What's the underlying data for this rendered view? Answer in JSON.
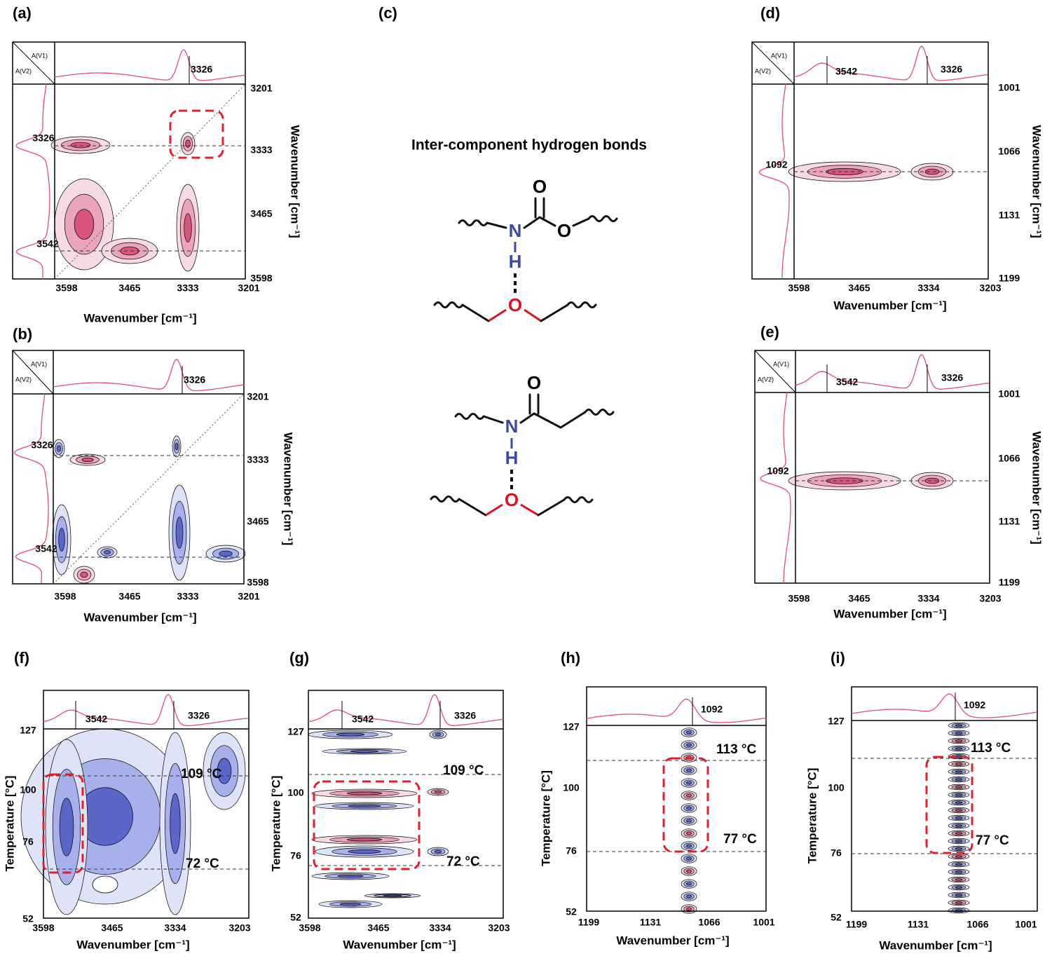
{
  "panels": [
    {
      "label": "(a)",
      "corner": [
        "A(V1)",
        "A(V2)"
      ],
      "peaks_top": [
        "3326"
      ],
      "peaks_left": [
        "3326",
        "3542"
      ],
      "xticks": [
        3598,
        3465,
        3333,
        3201
      ],
      "yticks": [
        3201,
        3333,
        3465,
        3598
      ],
      "xlabel": "Wavenumber [cm⁻¹]",
      "ylabel": "Wavenumber [cm⁻¹]",
      "annotations": []
    },
    {
      "label": "(b)",
      "corner": [
        "A(V1)",
        "A(V2)"
      ],
      "peaks_top": [
        "3326"
      ],
      "peaks_left": [
        "3326",
        "3542"
      ],
      "xticks": [
        3598,
        3465,
        3333,
        3201
      ],
      "yticks": [
        3201,
        3333,
        3465,
        3598
      ],
      "xlabel": "Wavenumber [cm⁻¹]",
      "ylabel": "Wavenumber [cm⁻¹]",
      "annotations": []
    },
    {
      "label": "(d)",
      "corner": [
        "A(V1)",
        "A(V2)"
      ],
      "peaks_top": [
        "3542",
        "3326"
      ],
      "peaks_left": [
        "1092"
      ],
      "xticks": [
        3598,
        3465,
        3334,
        3203
      ],
      "yticks": [
        1001,
        1066,
        1131,
        1199
      ],
      "xlabel": "Wavenumber [cm⁻¹]",
      "ylabel": "Wavenumber [cm⁻¹]",
      "annotations": []
    },
    {
      "label": "(e)",
      "corner": [
        "A(V1)",
        "A(V2)"
      ],
      "peaks_top": [
        "3542",
        "3326"
      ],
      "peaks_left": [
        "1092"
      ],
      "xticks": [
        3598,
        3465,
        3334,
        3203
      ],
      "yticks": [
        1001,
        1066,
        1131,
        1199
      ],
      "xlabel": "Wavenumber [cm⁻¹]",
      "ylabel": "Wavenumber [cm⁻¹]",
      "annotations": []
    },
    {
      "label": "(f)",
      "peaks_top": [
        "3542",
        "3326"
      ],
      "peaks_left": [],
      "xticks": [
        3598,
        3465,
        3334,
        3203
      ],
      "yticks": [
        127,
        100,
        76,
        52
      ],
      "xlabel": "Wavenumber [cm⁻¹]",
      "ylabel": "Temperature [°C]",
      "annotations": [
        "109 °C",
        "72 °C"
      ]
    },
    {
      "label": "(g)",
      "peaks_top": [
        "3542",
        "3326"
      ],
      "peaks_left": [],
      "xticks": [
        3598,
        3465,
        3334,
        3203
      ],
      "yticks": [
        127,
        100,
        76,
        52
      ],
      "xlabel": "Wavenumber [cm⁻¹]",
      "ylabel": "Temperature [°C]",
      "annotations": [
        "109 °C",
        "72 °C"
      ]
    },
    {
      "label": "(h)",
      "peaks_top": [
        "1092"
      ],
      "peaks_left": [],
      "xticks": [
        1199,
        1131,
        1066,
        1001
      ],
      "yticks": [
        127,
        100,
        76,
        52
      ],
      "xlabel": "Wavenumber [cm⁻¹]",
      "ylabel": "Temperature [°C]",
      "annotations": [
        "113 °C",
        "77 °C"
      ]
    },
    {
      "label": "(i)",
      "peaks_top": [
        "1092"
      ],
      "peaks_left": [],
      "xticks": [
        1199,
        1131,
        1066,
        1001
      ],
      "yticks": [
        127,
        100,
        76,
        52
      ],
      "xlabel": "Wavenumber [cm⁻¹]",
      "ylabel": "Temperature [°C]",
      "annotations": [
        "113 °C",
        "77 °C"
      ]
    }
  ],
  "scheme": {
    "label": "(c)",
    "title": "Inter-component hydrogen bonds",
    "molecules": [
      {
        "atoms": [
          "O",
          "N",
          "O",
          "H",
          "O"
        ]
      },
      {
        "atoms": [
          "O",
          "N",
          "H",
          "O"
        ]
      }
    ]
  }
}
